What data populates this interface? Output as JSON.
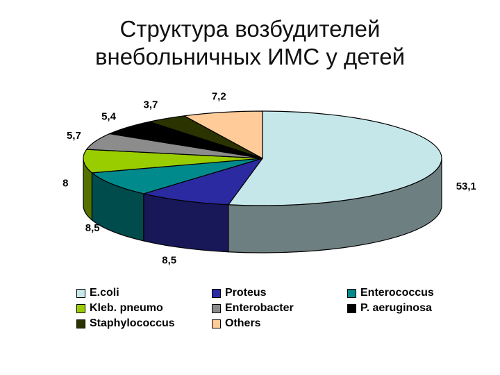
{
  "title_line1": "Структура возбудителей",
  "title_line2": "внебольничных ИМС у детей",
  "chart_data": {
    "type": "pie",
    "title": "Структура возбудителей внебольничных ИМС у детей",
    "labels": [
      "E.coli",
      "Proteus",
      "Enterococcus",
      "Kleb. pneumo",
      "Enterobacter",
      "P. aeruginosa",
      "Staphylococcus",
      "Others"
    ],
    "values": [
      53.1,
      8.5,
      8.5,
      8,
      5.7,
      5.4,
      3.7,
      7.2
    ],
    "value_labels": [
      "53,1",
      "8,5",
      "8,5",
      "8",
      "5,7",
      "5,4",
      "3,7",
      "7,2"
    ],
    "colors": [
      "#c6e7ea",
      "#2b2aa0",
      "#008a8c",
      "#9acd00",
      "#8c8c8c",
      "#000000",
      "#2b3300",
      "#ffcc99"
    ],
    "style": "3d",
    "legend_position": "bottom"
  }
}
